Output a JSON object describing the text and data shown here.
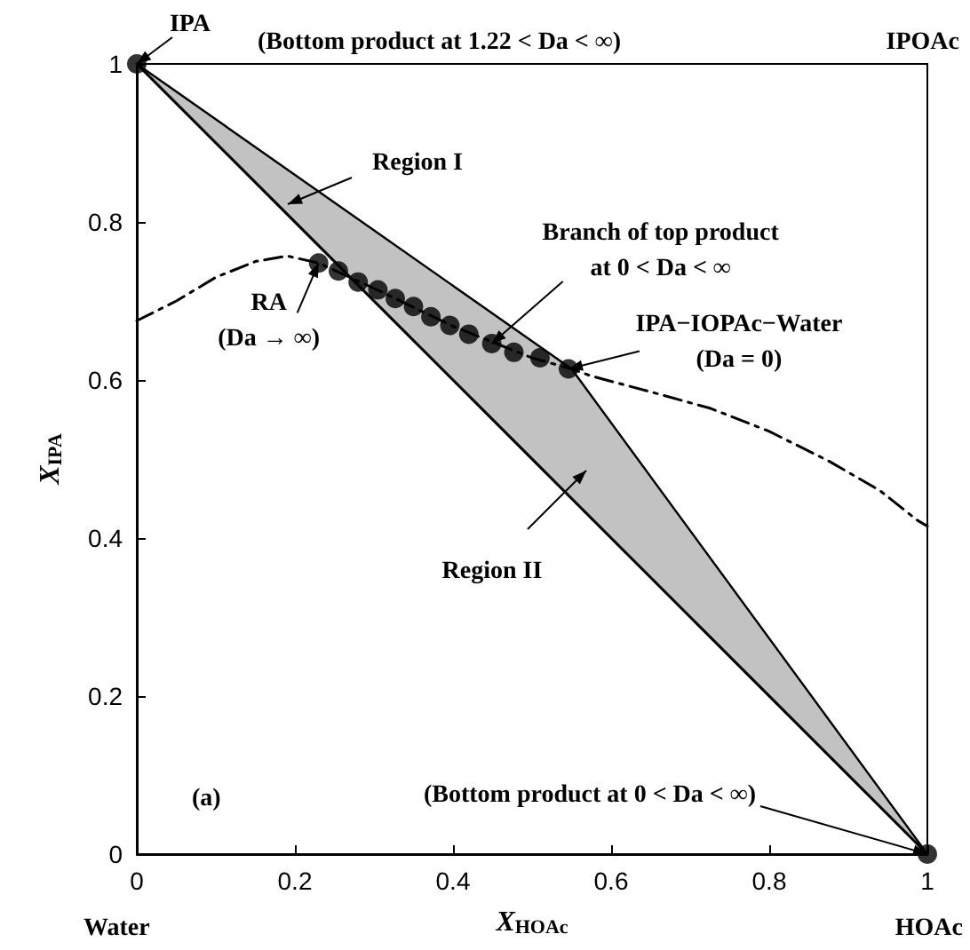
{
  "chart_data": {
    "type": "scatter",
    "xlabel": "X$_{HOAc}$",
    "ylabel": "X$_{IPA}$",
    "xlim": [
      0,
      1
    ],
    "ylim": [
      0,
      1
    ],
    "xticks": [
      0,
      0.2,
      0.4,
      0.6,
      0.8,
      1
    ],
    "yticks": [
      0,
      0.2,
      0.4,
      0.6,
      0.8,
      1
    ],
    "grid": false,
    "series": [
      {
        "type": "line",
        "color": "#000000",
        "x": [
          0,
          0.55,
          1
        ],
        "values": [
          1,
          0.45,
          0
        ],
        "lower": [
          1,
          0.45,
          0
        ],
        "upper": [
          1,
          0.614,
          0
        ],
        "marker": "none",
        "line_style": "solid"
      },
      {
        "type": "line",
        "color": "#000000",
        "x": [
          0,
          0.05,
          0.1,
          0.15,
          0.19,
          0.23,
          0.3,
          0.4,
          0.5,
          0.55,
          0.575,
          0.65,
          0.726,
          0.8,
          0.876,
          0.94,
          0.988,
          1
        ],
        "values": [
          0.675,
          0.7,
          0.73,
          0.75,
          0.757,
          0.748,
          0.716,
          0.668,
          0.628,
          0.614,
          0.605,
          0.585,
          0.564,
          0.535,
          0.497,
          0.46,
          0.422,
          0.415
        ],
        "marker": "none",
        "line_style": "dashed"
      },
      {
        "color": "#000000",
        "x": [
          0.23,
          0.255,
          0.28,
          0.305,
          0.327,
          0.35,
          0.372,
          0.396,
          0.42,
          0.449,
          0.477,
          0.51,
          0.546
        ],
        "values": [
          0.748,
          0.738,
          0.724,
          0.714,
          0.703,
          0.693,
          0.68,
          0.669,
          0.658,
          0.646,
          0.635,
          0.628,
          0.614
        ],
        "marker": "circle"
      },
      {
        "color": "#000000",
        "x": [
          0,
          1
        ],
        "values": [
          1,
          0
        ],
        "marker": "circle"
      }
    ],
    "annotations": [
      {
        "text": "IPA",
        "x": 0,
        "y": 1
      },
      "(Bottom product at 1.22 < Da < ∞)",
      "Region I",
      {
        "text": "Branch of top product\nat 0 < Da < ∞",
        "x": 0.449,
        "y": 0.646
      },
      {
        "text": "RA\n(Da → ∞)",
        "x": 0.23,
        "y": 0.748
      },
      {
        "text": "IPA−IOPAc−Water\n(Da = 0)",
        "x": 0.546,
        "y": 0.614
      },
      "Region II",
      "(a)",
      {
        "text": "(Bottom product at 0 < Da < ∞)",
        "x": 1,
        "y": 0
      },
      "IPOAc",
      "Water",
      "HOAc"
    ]
  }
}
